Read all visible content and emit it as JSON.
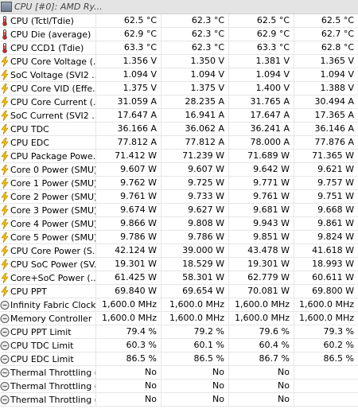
{
  "header": {
    "title": "CPU [#0]: AMD Ry..."
  },
  "rows": [
    {
      "icon": "thermometer-icon",
      "label": "CPU (Tctl/Tdie)",
      "values": [
        "62.5 °C",
        "62.3 °C",
        "62.5 °C",
        "62.5 °C"
      ]
    },
    {
      "icon": "thermometer-icon",
      "label": "CPU Die (average)",
      "values": [
        "62.9 °C",
        "62.3 °C",
        "62.9 °C",
        "62.7 °C"
      ]
    },
    {
      "icon": "thermometer-icon",
      "label": "CPU CCD1 (Tdie)",
      "values": [
        "63.3 °C",
        "62.3 °C",
        "63.3 °C",
        "62.8 °C"
      ]
    },
    {
      "icon": "lightning-icon",
      "label": "CPU Core Voltage (...",
      "values": [
        "1.356 V",
        "1.350 V",
        "1.381 V",
        "1.365 V"
      ]
    },
    {
      "icon": "lightning-icon",
      "label": "SoC Voltage (SVI2 ...",
      "values": [
        "1.094 V",
        "1.094 V",
        "1.094 V",
        "1.094 V"
      ]
    },
    {
      "icon": "lightning-icon",
      "label": "CPU Core VID (Effe...",
      "values": [
        "1.375 V",
        "1.375 V",
        "1.400 V",
        "1.388 V"
      ]
    },
    {
      "icon": "lightning-icon",
      "label": "CPU Core Current (...",
      "values": [
        "31.059 A",
        "28.235 A",
        "31.765 A",
        "30.494 A"
      ]
    },
    {
      "icon": "lightning-icon",
      "label": "SoC Current (SVI2 ...",
      "values": [
        "17.647 A",
        "16.941 A",
        "17.647 A",
        "17.365 A"
      ]
    },
    {
      "icon": "lightning-icon",
      "label": "CPU TDC",
      "values": [
        "36.166 A",
        "36.062 A",
        "36.241 A",
        "36.146 A"
      ]
    },
    {
      "icon": "lightning-icon",
      "label": "CPU EDC",
      "values": [
        "77.812 A",
        "77.812 A",
        "78.000 A",
        "77.876 A"
      ]
    },
    {
      "icon": "lightning-icon",
      "label": "CPU Package Powe...",
      "values": [
        "71.412 W",
        "71.239 W",
        "71.689 W",
        "71.365 W"
      ]
    },
    {
      "icon": "lightning-icon",
      "label": "Core 0 Power (SMU)",
      "values": [
        "9.607 W",
        "9.607 W",
        "9.642 W",
        "9.621 W"
      ]
    },
    {
      "icon": "lightning-icon",
      "label": "Core 1 Power (SMU)",
      "values": [
        "9.762 W",
        "9.725 W",
        "9.771 W",
        "9.757 W"
      ]
    },
    {
      "icon": "lightning-icon",
      "label": "Core 2 Power (SMU)",
      "values": [
        "9.761 W",
        "9.733 W",
        "9.761 W",
        "9.751 W"
      ]
    },
    {
      "icon": "lightning-icon",
      "label": "Core 3 Power (SMU)",
      "values": [
        "9.674 W",
        "9.627 W",
        "9.681 W",
        "9.668 W"
      ]
    },
    {
      "icon": "lightning-icon",
      "label": "Core 4 Power (SMU)",
      "values": [
        "9.866 W",
        "9.808 W",
        "9.943 W",
        "9.861 W"
      ]
    },
    {
      "icon": "lightning-icon",
      "label": "Core 5 Power (SMU)",
      "values": [
        "9.786 W",
        "9.786 W",
        "9.851 W",
        "9.824 W"
      ]
    },
    {
      "icon": "lightning-icon",
      "label": "CPU Core Power (S...",
      "values": [
        "42.124 W",
        "39.000 W",
        "43.478 W",
        "41.618 W"
      ]
    },
    {
      "icon": "lightning-icon",
      "label": "CPU SoC Power (SV...",
      "values": [
        "19.301 W",
        "18.529 W",
        "19.301 W",
        "18.993 W"
      ]
    },
    {
      "icon": "lightning-icon",
      "label": "Core+SoC Power (...",
      "values": [
        "61.425 W",
        "58.301 W",
        "62.779 W",
        "60.611 W"
      ]
    },
    {
      "icon": "lightning-icon",
      "label": "CPU PPT",
      "values": [
        "69.840 W",
        "69.654 W",
        "70.081 W",
        "69.800 W"
      ]
    },
    {
      "icon": "clock-icon",
      "label": "Infinity Fabric Clock...",
      "values": [
        "1,600.0 MHz",
        "1,600.0 MHz",
        "1,600.0 MHz",
        "1,600.0 MHz"
      ]
    },
    {
      "icon": "clock-icon",
      "label": "Memory Controller ...",
      "values": [
        "1,600.0 MHz",
        "1,600.0 MHz",
        "1,600.0 MHz",
        "1,600.0 MHz"
      ]
    },
    {
      "icon": "gauge-icon",
      "label": "CPU PPT Limit",
      "values": [
        "79.4 %",
        "79.2 %",
        "79.6 %",
        "79.3 %"
      ]
    },
    {
      "icon": "gauge-icon",
      "label": "CPU TDC Limit",
      "values": [
        "60.3 %",
        "60.1 %",
        "60.4 %",
        "60.2 %"
      ]
    },
    {
      "icon": "gauge-icon",
      "label": "CPU EDC Limit",
      "values": [
        "86.5 %",
        "86.5 %",
        "86.7 %",
        "86.5 %"
      ]
    },
    {
      "icon": "gauge-icon",
      "label": "Thermal Throttling (...",
      "values": [
        "No",
        "No",
        "No",
        ""
      ]
    },
    {
      "icon": "gauge-icon",
      "label": "Thermal Throttling (...",
      "values": [
        "No",
        "No",
        "No",
        ""
      ]
    },
    {
      "icon": "gauge-icon",
      "label": "Thermal Throttling (...",
      "values": [
        "No",
        "No",
        "No",
        ""
      ]
    }
  ]
}
